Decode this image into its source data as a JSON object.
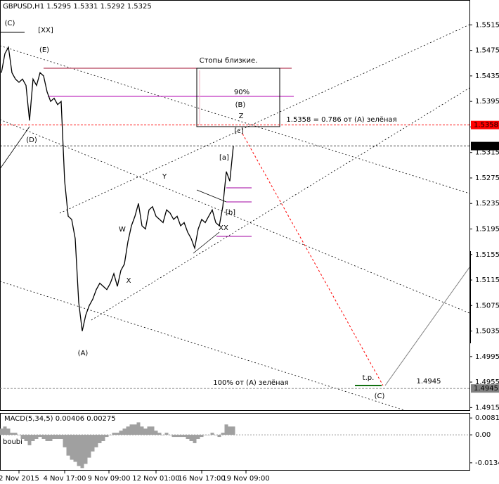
{
  "chart_data": [
    {
      "type": "line",
      "title": "GBPUSD,H1  1.5295 1.5331 1.5292 1.5325",
      "series": [
        {
          "color": "#000000",
          "values": [
            1.544,
            1.547,
            1.548,
            1.544,
            1.543,
            1.5425,
            1.543,
            1.542,
            1.5365,
            1.543,
            1.542,
            1.544,
            1.5435,
            1.541,
            1.5395,
            1.54,
            1.539,
            1.5395,
            1.527,
            1.5215,
            1.521,
            1.518,
            1.508,
            1.5035,
            1.506,
            1.5075,
            1.5085,
            1.51,
            1.511,
            1.5105,
            1.51,
            1.511,
            1.5125,
            1.5105,
            1.513,
            1.514,
            1.5175,
            1.52,
            1.5215,
            1.5235,
            1.52,
            1.5195,
            1.5225,
            1.523,
            1.5215,
            1.521,
            1.5205,
            1.5225,
            1.522,
            1.521,
            1.5215,
            1.52,
            1.5205,
            1.519,
            1.518,
            1.5165,
            1.5195,
            1.521,
            1.5205,
            1.5215,
            1.5225,
            1.5205,
            1.52,
            1.523,
            1.5285,
            1.527,
            1.5325
          ]
        }
      ],
      "xlim": [
        -0.4,
        133.2
      ],
      "xticks": [
        {
          "value": 5,
          "label": "2 Nov 2015"
        },
        {
          "value": 18,
          "label": "4 Nov 17:00"
        },
        {
          "value": 30.6,
          "label": "9 Nov 09:00"
        },
        {
          "value": 44,
          "label": "12 Nov 01:00"
        },
        {
          "value": 57,
          "label": "16 Nov 17:00"
        },
        {
          "value": 69.6,
          "label": "19 Nov 09:00"
        }
      ],
      "ylim": [
        1.4911,
        1.5554
      ],
      "yticks": [
        1.5515,
        1.5475,
        1.5435,
        1.5395,
        1.5355,
        1.5315,
        1.5275,
        1.5235,
        1.5195,
        1.5155,
        1.5115,
        1.5075,
        1.5035,
        1.4995,
        1.4955,
        1.4915
      ],
      "levels": [
        {
          "value": 1.5358,
          "color": "#ff0000"
        },
        {
          "value": 1.5325,
          "color": "#000000"
        },
        {
          "value": 1.4945,
          "color": "#808080"
        }
      ],
      "annotations": [
        {
          "text": "(C)",
          "color": "#2e8b2e"
        },
        {
          "text": "[XX]",
          "color": "#e02020"
        },
        {
          "text": "(E)",
          "color": "#2e8b2e"
        },
        {
          "text": "(D)",
          "color": "#2e8b2e"
        },
        {
          "text": "Стопы близкие.",
          "color": "#000000"
        },
        {
          "text": "90%",
          "color": "#000000"
        },
        {
          "text": "(B)",
          "color": "#2e8b2e"
        },
        {
          "text": "Z",
          "color": "#2040e0"
        },
        {
          "text": "1.5358 = 0.786  от (А) зелёная",
          "color": "#000000"
        },
        {
          "text": "[c]",
          "color": "#e02020"
        },
        {
          "text": "[a]",
          "color": "#e02020"
        },
        {
          "text": "Y",
          "color": "#2040e0"
        },
        {
          "text": "[b]",
          "color": "#e02020"
        },
        {
          "text": "W",
          "color": "#2040e0"
        },
        {
          "text": "XX",
          "color": "#2040e0"
        },
        {
          "text": "X",
          "color": "#2040e0"
        },
        {
          "text": "(A)",
          "color": "#2e8b2e"
        },
        {
          "text": "t.p.",
          "color": "#000000"
        },
        {
          "text": "1.4945",
          "color": "#000000"
        },
        {
          "text": "100% от (А) зелёная",
          "color": "#000000"
        },
        {
          "text": "(C)",
          "color": "#2e8b2e"
        }
      ]
    },
    {
      "type": "bar",
      "title": "MACD(5,34,5) 0.00406 0.00275",
      "subtitle": "boubi",
      "color": "#a0a0a0",
      "values": [
        0.003,
        0.004,
        0.003,
        0.001,
        0.001,
        0.0,
        -0.002,
        -0.003,
        -0.005,
        -0.003,
        -0.002,
        -0.001,
        -0.002,
        -0.003,
        -0.003,
        -0.002,
        -0.002,
        -0.002,
        -0.006,
        -0.01,
        -0.012,
        -0.013,
        -0.015,
        -0.016,
        -0.014,
        -0.011,
        -0.008,
        -0.006,
        -0.004,
        -0.003,
        -0.001,
        0.0,
        0.001,
        0.001,
        0.002,
        0.003,
        0.004,
        0.005,
        0.005,
        0.006,
        0.004,
        0.003,
        0.004,
        0.004,
        0.002,
        0.001,
        0.0,
        0.001,
        0.0,
        -0.001,
        -0.001,
        -0.001,
        -0.001,
        -0.002,
        -0.003,
        -0.004,
        -0.002,
        -0.001,
        0.0,
        0.0,
        0.001,
        0.0,
        -0.001,
        0.001,
        0.005,
        0.004,
        0.004
      ],
      "ylim": [
        -0.0169,
        0.0102
      ],
      "yticks": [
        0.00812,
        {
          "value": 0,
          "label": "0.00"
        },
        -0.01347
      ]
    }
  ]
}
